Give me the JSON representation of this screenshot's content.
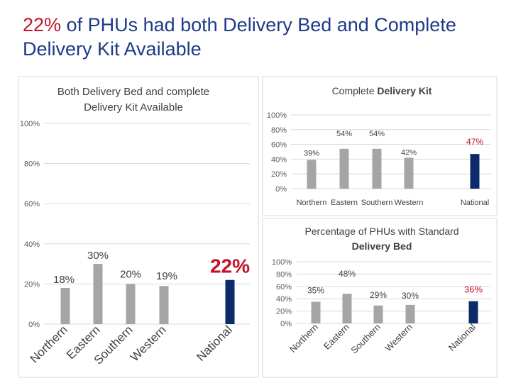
{
  "slide": {
    "title_highlight": "22%",
    "title_rest": " of PHUs had both Delivery Bed and Complete Delivery Kit Available",
    "colors": {
      "title": "#1f3b87",
      "highlight": "#c0142a",
      "gray_bar": "#a5a5a5",
      "national_bar": "#0d2a6b",
      "axis_text": "#595959"
    }
  },
  "chart_data": [
    {
      "id": "left",
      "type": "bar",
      "title_lines": [
        "Both Delivery Bed and complete",
        "Delivery Kit Available"
      ],
      "categories": [
        "Northern",
        "Eastern",
        "Southern",
        "Western",
        "National"
      ],
      "values": [
        18,
        30,
        20,
        19,
        22
      ],
      "labels": [
        "18%",
        "30%",
        "20%",
        "19%",
        "22%"
      ],
      "yticks": [
        "0%",
        "20%",
        "40%",
        "60%",
        "80%",
        "100%"
      ],
      "ylim": [
        0,
        100
      ]
    },
    {
      "id": "top-right",
      "type": "bar",
      "title_normal": "Complete ",
      "title_bold": "Delivery Kit",
      "categories": [
        "Northern",
        "Eastern",
        "Southern",
        "Western",
        "National"
      ],
      "values": [
        39,
        54,
        54,
        42,
        47
      ],
      "labels": [
        "39%",
        "54%",
        "54%",
        "42%",
        "47%"
      ],
      "yticks": [
        "0%",
        "20%",
        "40%",
        "60%",
        "80%",
        "100%"
      ],
      "ylim": [
        0,
        100
      ]
    },
    {
      "id": "bottom-right",
      "type": "bar",
      "title_line1": "Percentage of PHUs with Standard",
      "title_line2": "Delivery Bed",
      "categories": [
        "Northern",
        "Eastern",
        "Southern",
        "Western",
        "National"
      ],
      "values": [
        35,
        48,
        29,
        30,
        36
      ],
      "labels": [
        "35%",
        "48%",
        "29%",
        "30%",
        "36%"
      ],
      "yticks": [
        "0%",
        "20%",
        "40%",
        "60%",
        "80%",
        "100%"
      ],
      "ylim": [
        0,
        100
      ]
    }
  ]
}
